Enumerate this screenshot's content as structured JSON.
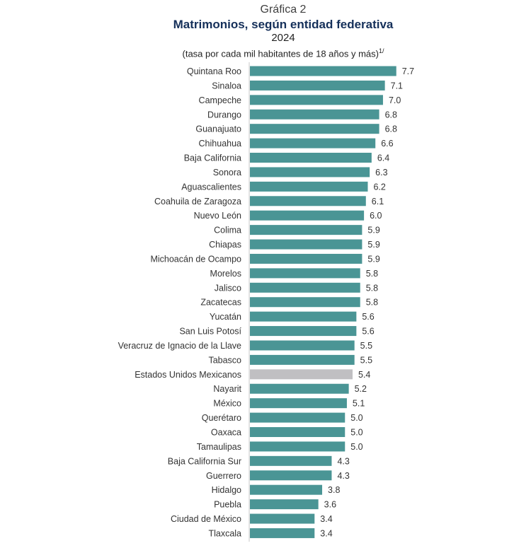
{
  "header": {
    "kicker": "Gráfica 2",
    "title": "Matrimonios, según entidad federativa",
    "year": "2024",
    "subtitle": "(tasa por cada mil habitantes de 18 años y más)",
    "footnote_mark": "1/"
  },
  "colors": {
    "bar": "#4a9595",
    "highlight": "#c0bfc2",
    "axis": "#c9c9c9"
  },
  "chart_data": {
    "type": "bar",
    "orientation": "horizontal",
    "title": "Matrimonios, según entidad federativa",
    "xlabel": "",
    "ylabel": "",
    "xlim": [
      0,
      8
    ],
    "highlight": "Estados Unidos Mexicanos",
    "categories": [
      "Quintana Roo",
      "Sinaloa",
      "Campeche",
      "Durango",
      "Guanajuato",
      "Chihuahua",
      "Baja California",
      "Sonora",
      "Aguascalientes",
      "Coahuila de Zaragoza",
      "Nuevo León",
      "Colima",
      "Chiapas",
      "Michoacán de Ocampo",
      "Morelos",
      "Jalisco",
      "Zacatecas",
      "Yucatán",
      "San Luis Potosí",
      "Veracruz de Ignacio de la Llave",
      "Tabasco",
      "Estados Unidos Mexicanos",
      "Nayarit",
      "México",
      "Querétaro",
      "Oaxaca",
      "Tamaulipas",
      "Baja California Sur",
      "Guerrero",
      "Hidalgo",
      "Puebla",
      "Ciudad de México",
      "Tlaxcala"
    ],
    "values": [
      7.7,
      7.1,
      7.0,
      6.8,
      6.8,
      6.6,
      6.4,
      6.3,
      6.2,
      6.1,
      6.0,
      5.9,
      5.9,
      5.9,
      5.8,
      5.8,
      5.8,
      5.6,
      5.6,
      5.5,
      5.5,
      5.4,
      5.2,
      5.1,
      5.0,
      5.0,
      5.0,
      4.3,
      4.3,
      3.8,
      3.6,
      3.4,
      3.4
    ],
    "value_labels": [
      "7.7",
      "7.1",
      "7.0",
      "6.8",
      "6.8",
      "6.6",
      "6.4",
      "6.3",
      "6.2",
      "6.1",
      "6.0",
      "5.9",
      "5.9",
      "5.9",
      "5.8",
      "5.8",
      "5.8",
      "5.6",
      "5.6",
      "5.5",
      "5.5",
      "5.4",
      "5.2",
      "5.1",
      "5.0",
      "5.0",
      "5.0",
      "4.3",
      "4.3",
      "3.8",
      "3.6",
      "3.4",
      "3.4"
    ]
  }
}
